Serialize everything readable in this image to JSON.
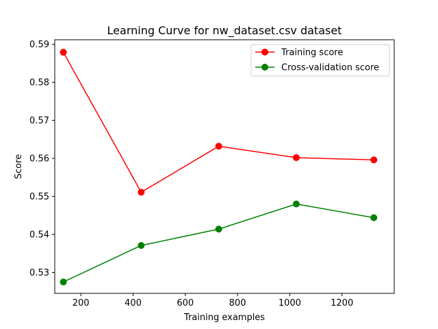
{
  "chart_data": {
    "type": "line",
    "title": "Learning Curve for nw_dataset.csv dataset",
    "xlabel": "Training examples",
    "ylabel": "Score",
    "xlim": [
      100,
      1400
    ],
    "ylim": [
      0.5245,
      0.5912
    ],
    "xticks": [
      200,
      400,
      600,
      800,
      1000,
      1200
    ],
    "xtick_labels": [
      "200",
      "400",
      "600",
      "800",
      "1000",
      "1200"
    ],
    "yticks": [
      0.53,
      0.54,
      0.55,
      0.56,
      0.57,
      0.58,
      0.59
    ],
    "ytick_labels": [
      "0.53",
      "0.54",
      "0.55",
      "0.56",
      "0.57",
      "0.58",
      "0.59"
    ],
    "grid": false,
    "legend_position": "top-right",
    "x": [
      133,
      431,
      728,
      1025,
      1322
    ],
    "series": [
      {
        "name": "Training score",
        "color": "#ff0000",
        "marker": "circle",
        "values": [
          0.5879,
          0.5511,
          0.5632,
          0.5602,
          0.5596
        ]
      },
      {
        "name": "Cross-validation score",
        "color": "#008000",
        "marker": "circle",
        "values": [
          0.5275,
          0.5371,
          0.5414,
          0.548,
          0.5444
        ]
      }
    ]
  }
}
